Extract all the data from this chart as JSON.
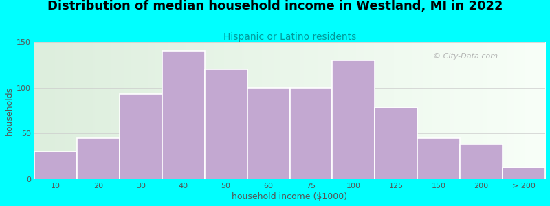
{
  "title": "Distribution of median household income in Westland, MI in 2022",
  "subtitle": "Hispanic or Latino residents",
  "xlabel": "household income ($1000)",
  "ylabel": "households",
  "bg_color": "#00FFFF",
  "bar_color": "#C3A8D1",
  "bar_edge_color": "#FFFFFF",
  "title_color": "#000000",
  "subtitle_color": "#009999",
  "axis_label_color": "#555555",
  "tick_color": "#555555",
  "categories": [
    "10",
    "20",
    "30",
    "40",
    "50",
    "60",
    "75",
    "100",
    "125",
    "150",
    "200",
    "> 200"
  ],
  "values": [
    30,
    45,
    93,
    140,
    120,
    100,
    100,
    130,
    78,
    45,
    38,
    13
  ],
  "ylim": [
    0,
    150
  ],
  "yticks": [
    0,
    50,
    100,
    150
  ],
  "plot_bg_left_color": "#DDEEDD",
  "plot_bg_right_color": "#F8FFF8",
  "watermark_text": "© City-Data.com",
  "watermark_color": "#AAAAAA",
  "title_fontsize": 13,
  "subtitle_fontsize": 10,
  "xlabel_fontsize": 9,
  "ylabel_fontsize": 9,
  "tick_fontsize": 8
}
